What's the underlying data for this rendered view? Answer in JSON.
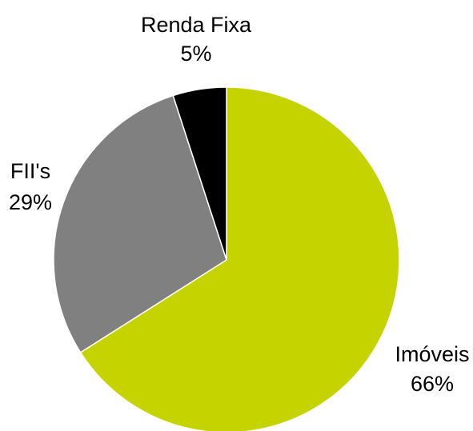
{
  "chart_data": {
    "type": "pie",
    "title": "",
    "categories": [
      "Imóveis",
      "FII's",
      "Renda Fixa"
    ],
    "values": [
      66,
      29,
      5
    ],
    "value_labels": [
      "66%",
      "29%",
      "5%"
    ],
    "colors": [
      "#c5d400",
      "#808080",
      "#000000"
    ],
    "start_angle": "12 o'clock",
    "direction": "clockwise",
    "legend": "none (labels placed next to slices)"
  }
}
